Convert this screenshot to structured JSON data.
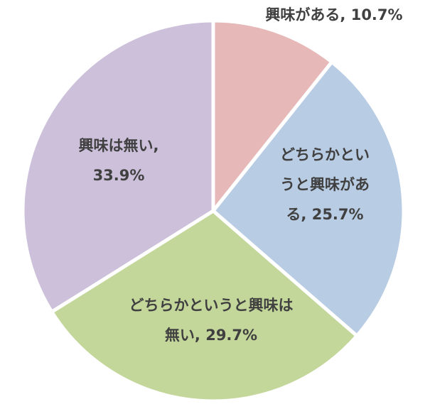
{
  "chart_data": {
    "type": "pie",
    "start_angle_deg": 0,
    "direction": "clockwise",
    "slices": [
      {
        "label": "興味がある",
        "value": 10.7,
        "display": [
          "興味がある, 10.7%"
        ],
        "color": "#e6b8b7"
      },
      {
        "label": "どちらかというと興味がある",
        "value": 25.7,
        "display": [
          "どちらかとい",
          "うと興味があ",
          "る, 25.7%"
        ],
        "color": "#b8cce4"
      },
      {
        "label": "どちらかというと興味は無い",
        "value": 29.7,
        "display": [
          "どちらかというと興味は",
          "無い, 29.7%"
        ],
        "color": "#c4d79b"
      },
      {
        "label": "興味は無い",
        "value": 33.9,
        "display": [
          "興味は無い,",
          "33.9%"
        ],
        "color": "#ccc0da"
      }
    ]
  }
}
